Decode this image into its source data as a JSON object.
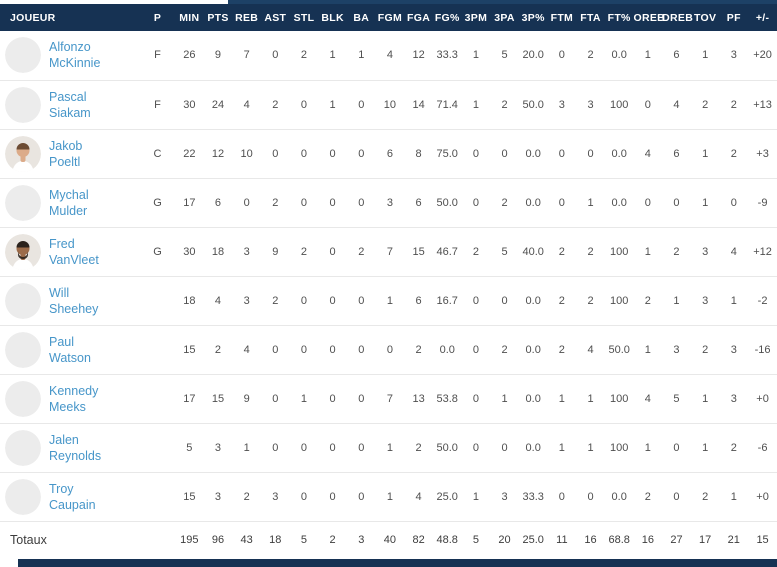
{
  "table": {
    "column_keys": [
      "joueur",
      "p",
      "min",
      "pts",
      "reb",
      "ast",
      "stl",
      "blk",
      "ba",
      "fgm",
      "fga",
      "fg-pct",
      "3pm",
      "3pa",
      "3p-pct",
      "ftm",
      "fta",
      "ft-pct",
      "oreb",
      "dreb",
      "tov",
      "pf",
      "plus-minus"
    ],
    "columns": [
      "JOUEUR",
      "P",
      "MIN",
      "PTS",
      "REB",
      "AST",
      "STL",
      "BLK",
      "BA",
      "FGM",
      "FGA",
      "FG%",
      "3PM",
      "3PA",
      "3P%",
      "FTM",
      "FTA",
      "FT%",
      "OREB",
      "DREB",
      "TOV",
      "PF",
      "+/-"
    ],
    "rows": [
      {
        "first": "Alfonzo",
        "last": "McKinnie",
        "pos": "F",
        "avatar": {
          "type": "placeholder"
        },
        "stats": [
          "26",
          "9",
          "7",
          "0",
          "2",
          "1",
          "1",
          "4",
          "12",
          "33.3",
          "1",
          "5",
          "20.0",
          "0",
          "2",
          "0.0",
          "1",
          "6",
          "1",
          "3",
          "+20"
        ]
      },
      {
        "first": "Pascal",
        "last": "Siakam",
        "pos": "F",
        "avatar": {
          "type": "placeholder"
        },
        "stats": [
          "30",
          "24",
          "4",
          "2",
          "0",
          "1",
          "0",
          "10",
          "14",
          "71.4",
          "1",
          "2",
          "50.0",
          "3",
          "3",
          "100",
          "0",
          "4",
          "2",
          "2",
          "+13"
        ]
      },
      {
        "first": "Jakob",
        "last": "Poeltl",
        "pos": "C",
        "avatar": {
          "type": "photo",
          "skin": "#dcab89",
          "hair": "#6d4c34",
          "beard": false,
          "bg": "#e9e5e0"
        },
        "stats": [
          "22",
          "12",
          "10",
          "0",
          "0",
          "0",
          "0",
          "6",
          "8",
          "75.0",
          "0",
          "0",
          "0.0",
          "0",
          "0",
          "0.0",
          "4",
          "6",
          "1",
          "2",
          "+3"
        ]
      },
      {
        "first": "Mychal",
        "last": "Mulder",
        "pos": "G",
        "avatar": {
          "type": "placeholder"
        },
        "stats": [
          "17",
          "6",
          "0",
          "2",
          "0",
          "0",
          "0",
          "3",
          "6",
          "50.0",
          "0",
          "2",
          "0.0",
          "0",
          "1",
          "0.0",
          "0",
          "0",
          "1",
          "0",
          "-9"
        ]
      },
      {
        "first": "Fred",
        "last": "VanVleet",
        "pos": "G",
        "avatar": {
          "type": "photo",
          "skin": "#9c6b49",
          "hair": "#2b221c",
          "beard": true,
          "bg": "#e9e5e0"
        },
        "stats": [
          "30",
          "18",
          "3",
          "9",
          "2",
          "0",
          "2",
          "7",
          "15",
          "46.7",
          "2",
          "5",
          "40.0",
          "2",
          "2",
          "100",
          "1",
          "2",
          "3",
          "4",
          "+12"
        ]
      },
      {
        "first": "Will",
        "last": "Sheehey",
        "pos": "",
        "avatar": {
          "type": "placeholder"
        },
        "stats": [
          "18",
          "4",
          "3",
          "2",
          "0",
          "0",
          "0",
          "1",
          "6",
          "16.7",
          "0",
          "0",
          "0.0",
          "2",
          "2",
          "100",
          "2",
          "1",
          "3",
          "1",
          "-2"
        ]
      },
      {
        "first": "Paul",
        "last": "Watson",
        "pos": "",
        "avatar": {
          "type": "placeholder"
        },
        "stats": [
          "15",
          "2",
          "4",
          "0",
          "0",
          "0",
          "0",
          "0",
          "2",
          "0.0",
          "0",
          "2",
          "0.0",
          "2",
          "4",
          "50.0",
          "1",
          "3",
          "2",
          "3",
          "-16"
        ]
      },
      {
        "first": "Kennedy",
        "last": "Meeks",
        "pos": "",
        "avatar": {
          "type": "placeholder"
        },
        "stats": [
          "17",
          "15",
          "9",
          "0",
          "1",
          "0",
          "0",
          "7",
          "13",
          "53.8",
          "0",
          "1",
          "0.0",
          "1",
          "1",
          "100",
          "4",
          "5",
          "1",
          "3",
          "+0"
        ]
      },
      {
        "first": "Jalen",
        "last": "Reynolds",
        "pos": "",
        "avatar": {
          "type": "placeholder"
        },
        "stats": [
          "5",
          "3",
          "1",
          "0",
          "0",
          "0",
          "0",
          "1",
          "2",
          "50.0",
          "0",
          "0",
          "0.0",
          "1",
          "1",
          "100",
          "1",
          "0",
          "1",
          "2",
          "-6"
        ]
      },
      {
        "first": "Troy",
        "last": "Caupain",
        "pos": "",
        "avatar": {
          "type": "placeholder"
        },
        "stats": [
          "15",
          "3",
          "2",
          "3",
          "0",
          "0",
          "0",
          "1",
          "4",
          "25.0",
          "1",
          "3",
          "33.3",
          "0",
          "0",
          "0.0",
          "2",
          "0",
          "2",
          "1",
          "+0"
        ]
      }
    ],
    "totals": {
      "label": "Totaux",
      "stats": [
        "195",
        "96",
        "43",
        "18",
        "5",
        "2",
        "3",
        "40",
        "82",
        "48.8",
        "5",
        "20",
        "25.0",
        "11",
        "16",
        "68.8",
        "16",
        "27",
        "17",
        "21",
        "15"
      ]
    }
  },
  "colors": {
    "header_bg": "#163253",
    "top_strip": "#1d4166",
    "player_link": "#4796c9",
    "stat_text": "#4f4f4f",
    "row_border": "#e8e8e8",
    "avatar_placeholder": "#ececec"
  }
}
